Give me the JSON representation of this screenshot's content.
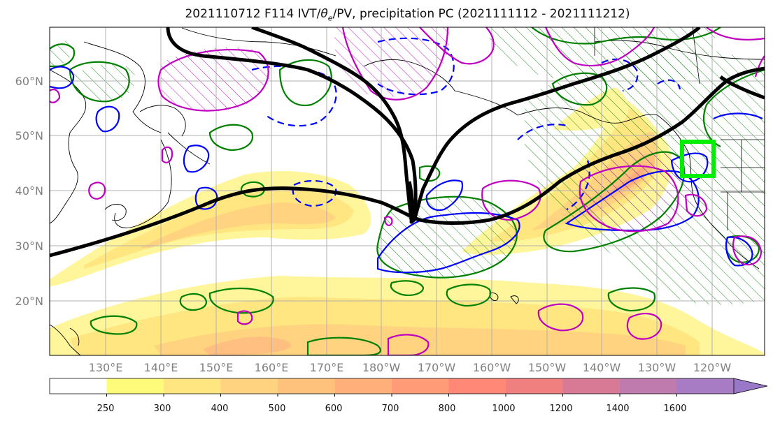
{
  "figure": {
    "title_main": "2021110712 F114 IVT/",
    "title_theta": "θ",
    "title_sub": "e",
    "title_rest": "/PV, precipitation PC (2021111112 - 2021111212)"
  },
  "axes": {
    "lat_labels": [
      "60°N",
      "50°N",
      "40°N",
      "30°N",
      "20°N"
    ],
    "lon_labels": [
      "130°E",
      "140°E",
      "150°E",
      "160°E",
      "170°E",
      "180°W",
      "170°W",
      "160°W",
      "150°W",
      "140°W",
      "130°W",
      "120°W"
    ]
  },
  "colorbar": {
    "ticks": [
      "250",
      "300",
      "400",
      "500",
      "600",
      "700",
      "800",
      "1000",
      "1200",
      "1400",
      "1600"
    ],
    "colors": [
      "#ffffff",
      "#fffb7a",
      "#ffe680",
      "#ffd37f",
      "#ffc27c",
      "#ffb07a",
      "#ff9b77",
      "#ff8877",
      "#f0807f",
      "#d87a95",
      "#bf7aae",
      "#a87bc5",
      "#9a78c8"
    ]
  },
  "legend_colors": {
    "ivt_contour": "#000000",
    "theta_pos": "#008000",
    "theta_neg": "#0000ff",
    "pv": "#c000c0",
    "target_box": "#00ee00"
  }
}
